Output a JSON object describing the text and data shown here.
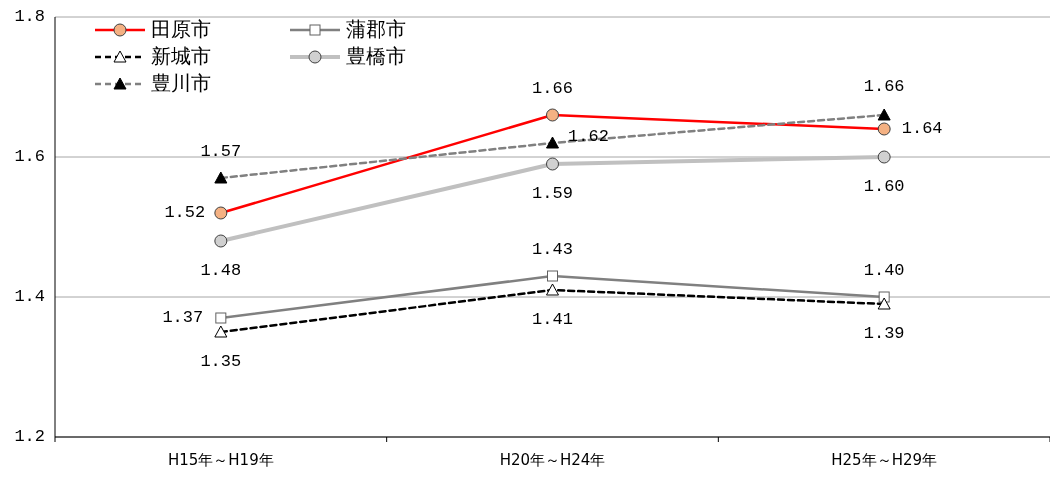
{
  "chart_data": {
    "type": "line",
    "categories": [
      "H15年～H19年",
      "H20年～H24年",
      "H25年～H29年"
    ],
    "ylim": [
      1.2,
      1.8
    ],
    "yticks": [
      {
        "value": 1.2,
        "label": "1.2"
      },
      {
        "value": 1.4,
        "label": "1.4"
      },
      {
        "value": 1.6,
        "label": "1.6"
      },
      {
        "value": 1.8,
        "label": "1.8"
      }
    ],
    "grid": "y",
    "legend": "top left",
    "series": [
      {
        "name": "田原市",
        "color": "#ff0000",
        "values": [
          1.52,
          1.66,
          1.64
        ],
        "value_labels": [
          "1.52",
          "1.66",
          "1.64"
        ],
        "marker": "circle",
        "line_style": "solid"
      },
      {
        "name": "蒲郡市",
        "color": "#808080",
        "values": [
          1.37,
          1.43,
          1.4
        ],
        "value_labels": [
          "1.37",
          "1.43",
          "1.40"
        ],
        "marker": "square",
        "line_style": "solid"
      },
      {
        "name": "新城市",
        "color": "#000000",
        "values": [
          1.35,
          1.41,
          1.39
        ],
        "value_labels": [
          "1.35",
          "1.41",
          "1.39"
        ],
        "marker": "triangle",
        "line_style": "dashed"
      },
      {
        "name": "豊橋市",
        "color": "#c0c0c0",
        "values": [
          1.48,
          1.59,
          1.6
        ],
        "value_labels": [
          "1.48",
          "1.59",
          "1.60"
        ],
        "marker": "circle",
        "line_style": "solid"
      },
      {
        "name": "豊川市",
        "color": "#808080",
        "values": [
          1.57,
          1.62,
          1.66
        ],
        "value_labels": [
          "1.57",
          "1.62",
          "1.66"
        ],
        "marker": "triangle",
        "line_style": "dashed"
      }
    ]
  }
}
